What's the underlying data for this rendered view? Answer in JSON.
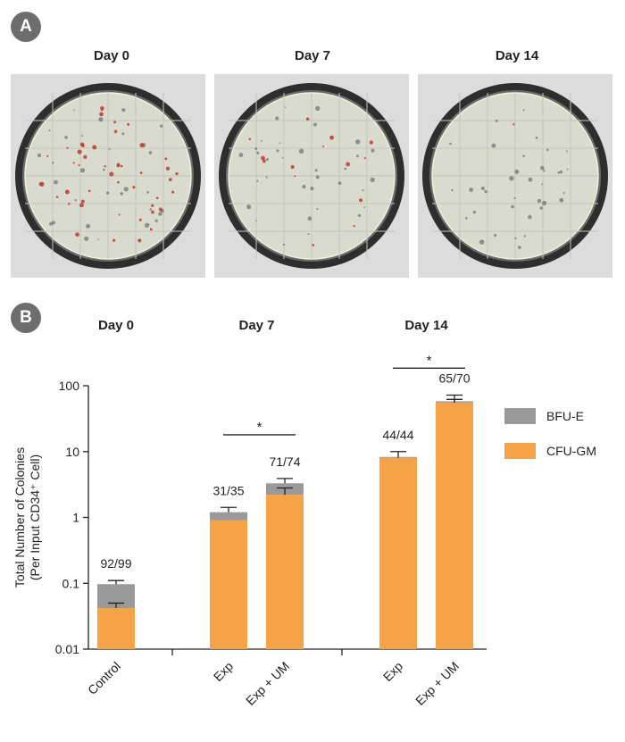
{
  "panel_labels": {
    "a": "A",
    "b": "B"
  },
  "panel_a": {
    "dishes": [
      {
        "title": "Day 0",
        "red_colony_count": 46,
        "dark_colony_count": 34
      },
      {
        "title": "Day 7",
        "red_colony_count": 14,
        "dark_colony_count": 34
      },
      {
        "title": "Day 14",
        "red_colony_count": 1,
        "dark_colony_count": 36
      }
    ]
  },
  "colors": {
    "bfu_e": "#9a9a9a",
    "cfu_gm": "#f6a246",
    "badge": "#6d6d6d",
    "dish_bg": "#cfcfcf",
    "colony_red": "#c0392b"
  },
  "chart_data": {
    "type": "bar",
    "stacked": true,
    "y_scale": "log",
    "ylim": [
      0.01,
      100
    ],
    "ylabel_lines": [
      "Total Number of Colonies",
      "(Per Input CD34⁺ Cell)"
    ],
    "y_ticks": [
      {
        "value": 100,
        "label": "100"
      },
      {
        "value": 10,
        "label": "10"
      },
      {
        "value": 1,
        "label": "1"
      },
      {
        "value": 0.1,
        "label": "0.1"
      },
      {
        "value": 0.01,
        "label": "0.01"
      }
    ],
    "group_titles": [
      {
        "label": "Day 0",
        "bars": [
          0
        ]
      },
      {
        "label": "Day 7",
        "bars": [
          1,
          2
        ]
      },
      {
        "label": "Day 14",
        "bars": [
          3,
          4
        ]
      }
    ],
    "categories": [
      "Control",
      "Exp",
      "Exp + UM",
      "Exp",
      "Exp + UM"
    ],
    "series": [
      {
        "name": "CFU-GM",
        "values": [
          0.042,
          0.9,
          2.2,
          8.0,
          55.0
        ],
        "errors": [
          0.05,
          null,
          2.8,
          10.0,
          62.0
        ]
      },
      {
        "name": "BFU-E",
        "values": [
          0.097,
          1.2,
          3.3,
          8.3,
          58.0
        ],
        "errors": [
          0.11,
          1.42,
          3.9,
          null,
          72.0
        ]
      }
    ],
    "bar_labels": [
      "92/99",
      "31/35",
      "71/74",
      "44/44",
      "65/70"
    ],
    "legend": [
      {
        "name": "BFU-E",
        "color": "#9a9a9a"
      },
      {
        "name": "CFU-GM",
        "color": "#f6a246"
      }
    ],
    "legend_position": "right",
    "significance": [
      {
        "bars": [
          1,
          2
        ],
        "label": "*",
        "y_value": 18
      },
      {
        "bars": [
          3,
          4
        ],
        "label": "*",
        "y_value": 185
      }
    ]
  }
}
